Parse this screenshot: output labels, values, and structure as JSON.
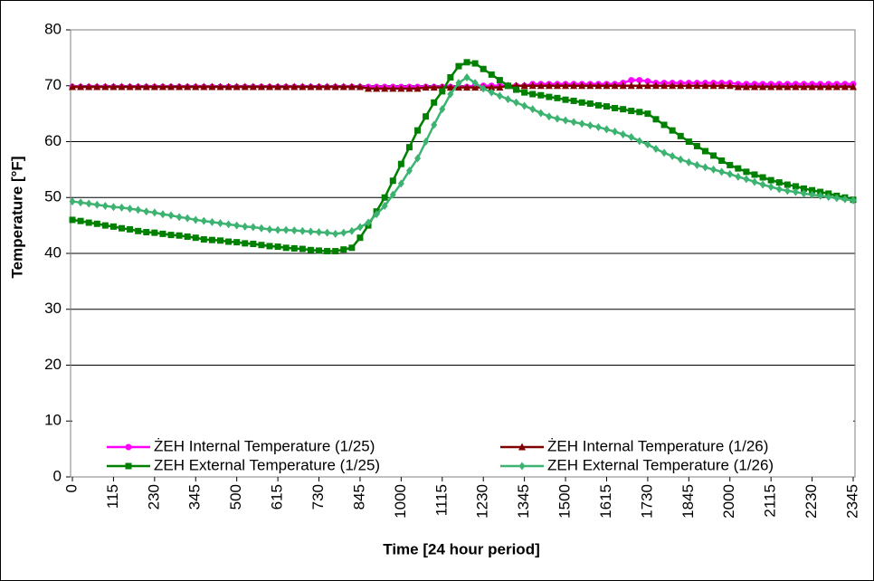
{
  "chart_data": {
    "type": "line",
    "x_label": "Time [24 hour period]",
    "y_label": "Temperature [°F]",
    "categories": [
      "0",
      null,
      null,
      null,
      null,
      "115",
      null,
      null,
      null,
      null,
      "230",
      null,
      null,
      null,
      null,
      "345",
      null,
      null,
      null,
      null,
      "500",
      null,
      null,
      null,
      null,
      "615",
      null,
      null,
      null,
      null,
      "730",
      null,
      null,
      null,
      null,
      "845",
      null,
      null,
      null,
      null,
      "1000",
      null,
      null,
      null,
      null,
      "1115",
      null,
      null,
      null,
      null,
      "1230",
      null,
      null,
      null,
      null,
      "1345",
      null,
      null,
      null,
      null,
      "1500",
      null,
      null,
      null,
      null,
      "1615",
      null,
      null,
      null,
      null,
      "1730",
      null,
      null,
      null,
      null,
      "1845",
      null,
      null,
      null,
      null,
      "2000",
      null,
      null,
      null,
      null,
      "2115",
      null,
      null,
      null,
      null,
      "2230",
      null,
      null,
      null,
      null,
      "2345"
    ],
    "ylim": [
      0,
      80
    ],
    "yticks": [
      0,
      10,
      20,
      30,
      40,
      50,
      60,
      70,
      80
    ],
    "grid": true,
    "legend": "bottom",
    "series": [
      {
        "name": "ŻEH Internal Temperature (1/25)",
        "color": "#ff00ff",
        "marker": "circle",
        "values": [
          69.8,
          69.8,
          69.8,
          69.8,
          69.8,
          69.8,
          69.8,
          69.8,
          69.8,
          69.8,
          69.8,
          69.8,
          69.8,
          69.8,
          69.8,
          69.8,
          69.8,
          69.8,
          69.8,
          69.8,
          69.8,
          69.8,
          69.8,
          69.8,
          69.8,
          69.8,
          69.8,
          69.8,
          69.8,
          69.8,
          69.8,
          69.8,
          69.8,
          69.8,
          69.8,
          69.8,
          69.8,
          69.8,
          69.8,
          69.8,
          69.8,
          69.8,
          69.8,
          69.8,
          69.8,
          69.8,
          69.8,
          69.8,
          69.8,
          70,
          70,
          70,
          70,
          70,
          70,
          70,
          70.3,
          70.3,
          70.3,
          70.3,
          70.3,
          70.3,
          70.3,
          70.3,
          70.3,
          70.3,
          70.3,
          70.5,
          71,
          71,
          70.8,
          70.5,
          70.5,
          70.5,
          70.5,
          70.5,
          70.5,
          70.5,
          70.5,
          70.5,
          70.5,
          70.3,
          70.3,
          70.3,
          70.3,
          70.3,
          70.3,
          70.3,
          70.3,
          70.3,
          70.3,
          70.3,
          70.3,
          70.3,
          70.3,
          70.3
        ]
      },
      {
        "name": "ŻEH Internal Temperature (1/26)",
        "color": "#800000",
        "marker": "triangle",
        "values": [
          69.8,
          69.8,
          69.8,
          69.8,
          69.8,
          69.8,
          69.8,
          69.8,
          69.8,
          69.8,
          69.8,
          69.8,
          69.8,
          69.8,
          69.8,
          69.8,
          69.8,
          69.8,
          69.8,
          69.8,
          69.8,
          69.8,
          69.8,
          69.8,
          69.8,
          69.8,
          69.8,
          69.8,
          69.8,
          69.8,
          69.8,
          69.8,
          69.8,
          69.8,
          69.8,
          69.8,
          69.5,
          69.5,
          69.5,
          69.5,
          69.5,
          69.5,
          69.5,
          69.7,
          69.7,
          69.7,
          69.7,
          69.7,
          69.7,
          69.7,
          69.7,
          69.7,
          69.7,
          70,
          70,
          70,
          70,
          70,
          70,
          70,
          70,
          70,
          70,
          70,
          70,
          70,
          70,
          70,
          70,
          70,
          70,
          70,
          70,
          70,
          70,
          70,
          70,
          70,
          70,
          70,
          70,
          69.8,
          69.8,
          69.8,
          69.8,
          69.8,
          69.8,
          69.8,
          69.8,
          69.8,
          69.8,
          69.8,
          69.8,
          69.8,
          69.8,
          69.8
        ]
      },
      {
        "name": "ZEH External Temperature (1/25)",
        "color": "#008000",
        "marker": "square",
        "values": [
          46,
          45.8,
          45.5,
          45.3,
          45,
          44.8,
          44.5,
          44.3,
          44,
          43.8,
          43.7,
          43.5,
          43.3,
          43.2,
          43,
          42.8,
          42.5,
          42.4,
          42.3,
          42.1,
          42,
          41.8,
          41.7,
          41.5,
          41.3,
          41.2,
          41,
          40.9,
          40.8,
          40.6,
          40.5,
          40.4,
          40.4,
          40.7,
          41,
          42.8,
          45,
          47.5,
          50,
          53,
          56,
          59,
          62,
          64.5,
          67,
          69,
          71.5,
          73.5,
          74.2,
          74,
          73,
          72,
          71,
          70,
          69.3,
          68.8,
          68.5,
          68.3,
          68,
          67.8,
          67.5,
          67.3,
          67,
          66.8,
          66.5,
          66.3,
          66,
          65.8,
          65.5,
          65.3,
          65,
          64,
          63,
          62,
          61,
          60,
          59.2,
          58.3,
          57.5,
          56.6,
          55.8,
          55.2,
          54.6,
          54.1,
          53.6,
          53.1,
          52.7,
          52.3,
          52,
          51.6,
          51.3,
          51,
          50.7,
          50.3,
          50,
          49.6
        ]
      },
      {
        "name": "ZEH External Temperature (1/26)",
        "color": "#3cb371",
        "marker": "diamond",
        "values": [
          49.3,
          49.1,
          48.9,
          48.7,
          48.5,
          48.3,
          48.2,
          48,
          47.8,
          47.5,
          47.3,
          47,
          46.8,
          46.5,
          46.3,
          46,
          45.8,
          45.6,
          45.4,
          45.2,
          45,
          44.8,
          44.7,
          44.5,
          44.3,
          44.2,
          44.2,
          44.1,
          44,
          43.9,
          43.8,
          43.7,
          43.5,
          43.7,
          44,
          44.7,
          45.5,
          47,
          48.5,
          50.5,
          52.5,
          54.8,
          57,
          60,
          63,
          65.8,
          68.5,
          70.5,
          71.5,
          70.5,
          69.5,
          68.8,
          68.2,
          67.6,
          67,
          66.4,
          65.8,
          65.1,
          64.5,
          64.1,
          63.8,
          63.5,
          63.2,
          62.9,
          62.6,
          62.2,
          61.8,
          61.3,
          60.8,
          60.1,
          59.5,
          58.7,
          58,
          57.4,
          56.8,
          56.3,
          55.8,
          55.4,
          55,
          54.6,
          54.2,
          53.7,
          53.3,
          52.8,
          52.3,
          51.9,
          51.5,
          51.2,
          51,
          50.7,
          50.5,
          50.3,
          50.1,
          49.9,
          49.7,
          49.5
        ]
      }
    ]
  }
}
